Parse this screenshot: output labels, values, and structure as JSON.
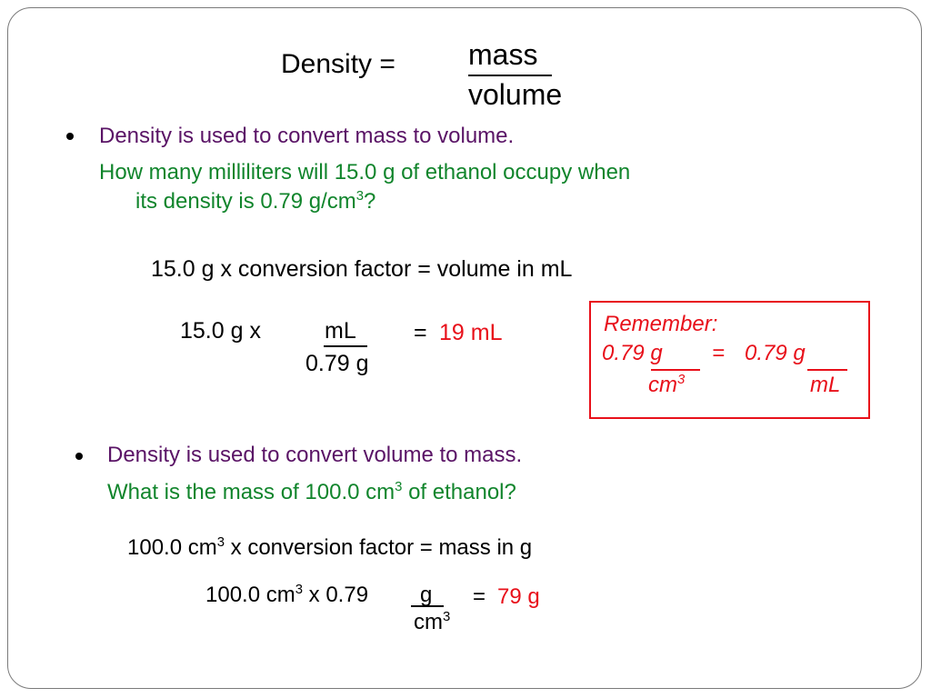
{
  "formula": {
    "lhs": "Density =",
    "numerator": "mass",
    "denominator": "volume"
  },
  "section1": {
    "bullet": "Density is used to convert mass to volume.",
    "question_line1": "How many milliliters will 15.0 g of ethanol occupy when",
    "question_line2_pre": "its density is 0.79 g/cm",
    "question_line2_sup": "3",
    "question_line2_post": "?",
    "equation": "15.0 g x conversion factor = volume in mL",
    "calc_lhs": "15.0 g  x",
    "calc_num": "mL",
    "calc_den": "0.79 g",
    "calc_eq": "=",
    "calc_result": "19 mL"
  },
  "remember": {
    "title": "Remember:",
    "left_num": "0.79 g",
    "eq": "=",
    "right_num": "0.79 g",
    "left_den": "cm",
    "left_den_sup": "3",
    "right_den": "mL"
  },
  "section2": {
    "bullet": "Density is used to convert volume to mass.",
    "question_pre": "What is the mass of 100.0 cm",
    "question_sup": "3",
    "question_post": " of ethanol?",
    "equation_pre": "100.0 cm",
    "equation_sup": "3",
    "equation_post": "  x conversion factor = mass in g",
    "calc_pre": "100.0 cm",
    "calc_sup": "3",
    "calc_mid": " x 0.79 ",
    "calc_num": "g",
    "calc_den": "cm",
    "calc_den_sup": "3",
    "calc_eq": "=",
    "calc_result": "79 g"
  }
}
